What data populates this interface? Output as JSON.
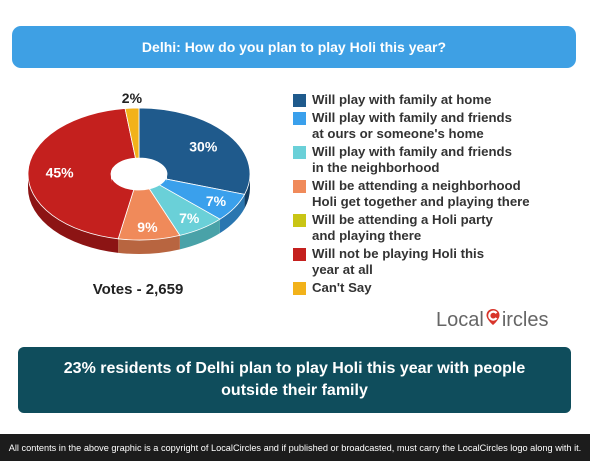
{
  "header": {
    "title": "Delhi: How do you plan to play Holi this year?"
  },
  "chart_data": {
    "type": "pie",
    "title": "Delhi: How do you plan to play Holi this year?",
    "style": "3d-donut",
    "legend_position": "right",
    "categories": [
      "Will play with family at home",
      "Will play with family and friends at ours or someone's home",
      "Will play with family and friends in the neighborhood",
      "Will be attending a neighborhood Holi get together and playing there",
      "Will be attending a Holi party and playing there",
      "Will not be playing Holi this year at all",
      "Can't Say"
    ],
    "legend_labels": [
      "Will play with family at home",
      "Will play with family and friends\nat ours or someone's home",
      "Will play with family and friends\nin the neighborhood",
      "Will be attending a neighborhood\nHoli get together and playing there",
      "Will be attending a Holi party\nand playing there",
      "Will not be playing Holi this\nyear at all",
      "Can't Say"
    ],
    "values": [
      30,
      7,
      7,
      9,
      0,
      45,
      2
    ],
    "data_labels": [
      "30%",
      "7%",
      "7%",
      "9%",
      "",
      "45%",
      "2%"
    ],
    "colors": [
      "#1f5a8c",
      "#3aa0ec",
      "#6ad0d8",
      "#f08a5a",
      "#c9c515",
      "#c4201e",
      "#f2b21a"
    ],
    "side_colors": [
      "#143e62",
      "#2a76b0",
      "#49a2a8",
      "#b86540",
      "#9a960f",
      "#8c1414",
      "#b88612"
    ],
    "label_colors": [
      "#ffffff",
      "#ffffff",
      "#ffffff",
      "#ffffff",
      "#ffffff",
      "#ffffff",
      "#222222"
    ]
  },
  "votes": "Votes - 2,659",
  "logo": {
    "part1": "Local",
    "part2": "ircles"
  },
  "banner": {
    "text": "23% residents of Delhi plan to play Holi this year with people outside their family"
  },
  "footer": {
    "text": "All contents in the above graphic is a copyright of LocalCircles and if published or broadcasted, must carry the LocalCircles logo along with it."
  }
}
